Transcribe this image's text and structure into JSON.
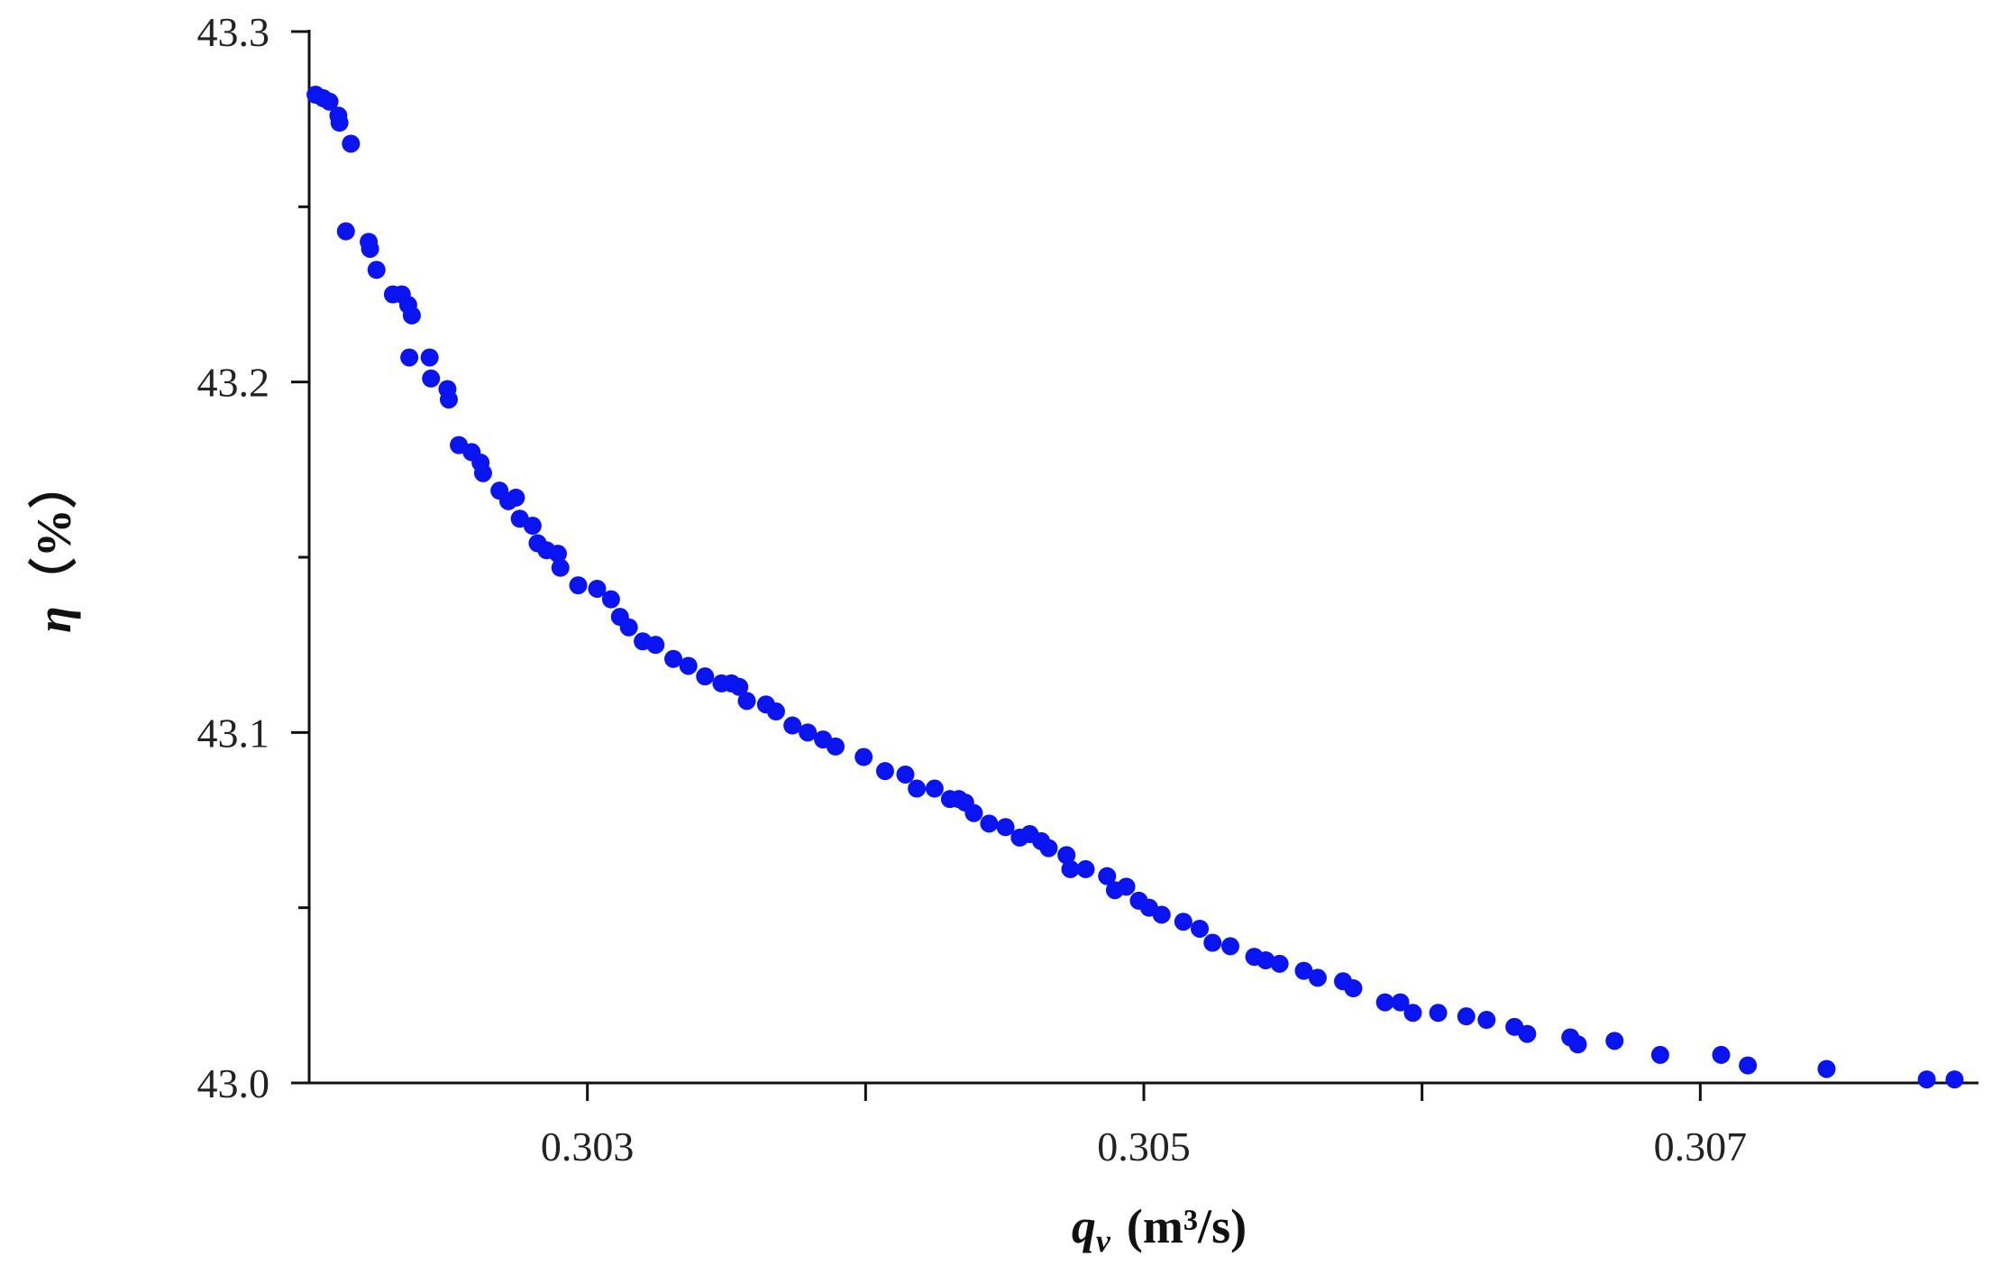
{
  "chart_data": {
    "type": "scatter",
    "color": "#0a14f0",
    "x_label": {
      "symbol": "q",
      "subscript": "v",
      "unit": "(m³/s)"
    },
    "y_label": {
      "symbol": "η",
      "unit": "（%）"
    },
    "xlim": [
      0.302,
      0.308
    ],
    "ylim": [
      43.0,
      43.3
    ],
    "xticks": [
      0.303,
      0.305,
      0.307
    ],
    "xminor": [
      0.304,
      0.306
    ],
    "yticks": [
      {
        "value": 43.0,
        "label": "43.0"
      },
      43.1,
      43.2,
      43.3
    ],
    "yminor": [
      43.05,
      43.15,
      43.25
    ],
    "x": [
      0.302023,
      0.30205,
      0.302073,
      0.302105,
      0.302109,
      0.30215,
      0.302132,
      0.302214,
      0.302219,
      0.302242,
      0.302301,
      0.302333,
      0.302356,
      0.302369,
      0.30236,
      0.302433,
      0.302438,
      0.302497,
      0.302502,
      0.302538,
      0.302584,
      0.302616,
      0.302625,
      0.302684,
      0.302716,
      0.302743,
      0.302757,
      0.302803,
      0.302821,
      0.302853,
      0.302894,
      0.302903,
      0.302967,
      0.303035,
      0.303085,
      0.303117,
      0.303149,
      0.303199,
      0.303245,
      0.303309,
      0.303363,
      0.303423,
      0.303482,
      0.303518,
      0.303546,
      0.303573,
      0.303642,
      0.303678,
      0.303737,
      0.303792,
      0.303847,
      0.303892,
      0.303993,
      0.30407,
      0.304143,
      0.304184,
      0.304248,
      0.304303,
      0.304335,
      0.304358,
      0.304389,
      0.304444,
      0.304503,
      0.304554,
      0.30459,
      0.304631,
      0.304658,
      0.304722,
      0.304736,
      0.304791,
      0.304868,
      0.304896,
      0.304937,
      0.304982,
      0.305019,
      0.305064,
      0.305142,
      0.305201,
      0.305247,
      0.305311,
      0.305397,
      0.305438,
      0.305488,
      0.305575,
      0.305625,
      0.305716,
      0.305753,
      0.305867,
      0.305922,
      0.305967,
      0.306058,
      0.306159,
      0.306232,
      0.306332,
      0.306378,
      0.306533,
      0.30656,
      0.306692,
      0.306856,
      0.307075,
      0.307171,
      0.307454,
      0.307814,
      0.307914
    ],
    "values": [
      43.282,
      43.281,
      43.28,
      43.276,
      43.274,
      43.268,
      43.243,
      43.24,
      43.238,
      43.232,
      43.225,
      43.225,
      43.222,
      43.219,
      43.207,
      43.207,
      43.201,
      43.198,
      43.195,
      43.182,
      43.18,
      43.177,
      43.174,
      43.169,
      43.166,
      43.167,
      43.161,
      43.159,
      43.154,
      43.152,
      43.151,
      43.147,
      43.142,
      43.141,
      43.138,
      43.133,
      43.13,
      43.126,
      43.125,
      43.121,
      43.119,
      43.116,
      43.114,
      43.114,
      43.113,
      43.109,
      43.108,
      43.106,
      43.102,
      43.1,
      43.098,
      43.096,
      43.093,
      43.089,
      43.088,
      43.084,
      43.084,
      43.081,
      43.081,
      43.08,
      43.077,
      43.074,
      43.073,
      43.07,
      43.071,
      43.069,
      43.067,
      43.065,
      43.061,
      43.061,
      43.059,
      43.055,
      43.056,
      43.052,
      43.05,
      43.048,
      43.046,
      43.044,
      43.04,
      43.039,
      43.036,
      43.035,
      43.034,
      43.032,
      43.03,
      43.029,
      43.027,
      43.023,
      43.023,
      43.02,
      43.02,
      43.019,
      43.018,
      43.016,
      43.014,
      43.013,
      43.011,
      43.012,
      43.008,
      43.008,
      43.005,
      43.004,
      43.001,
      43.001
    ]
  }
}
